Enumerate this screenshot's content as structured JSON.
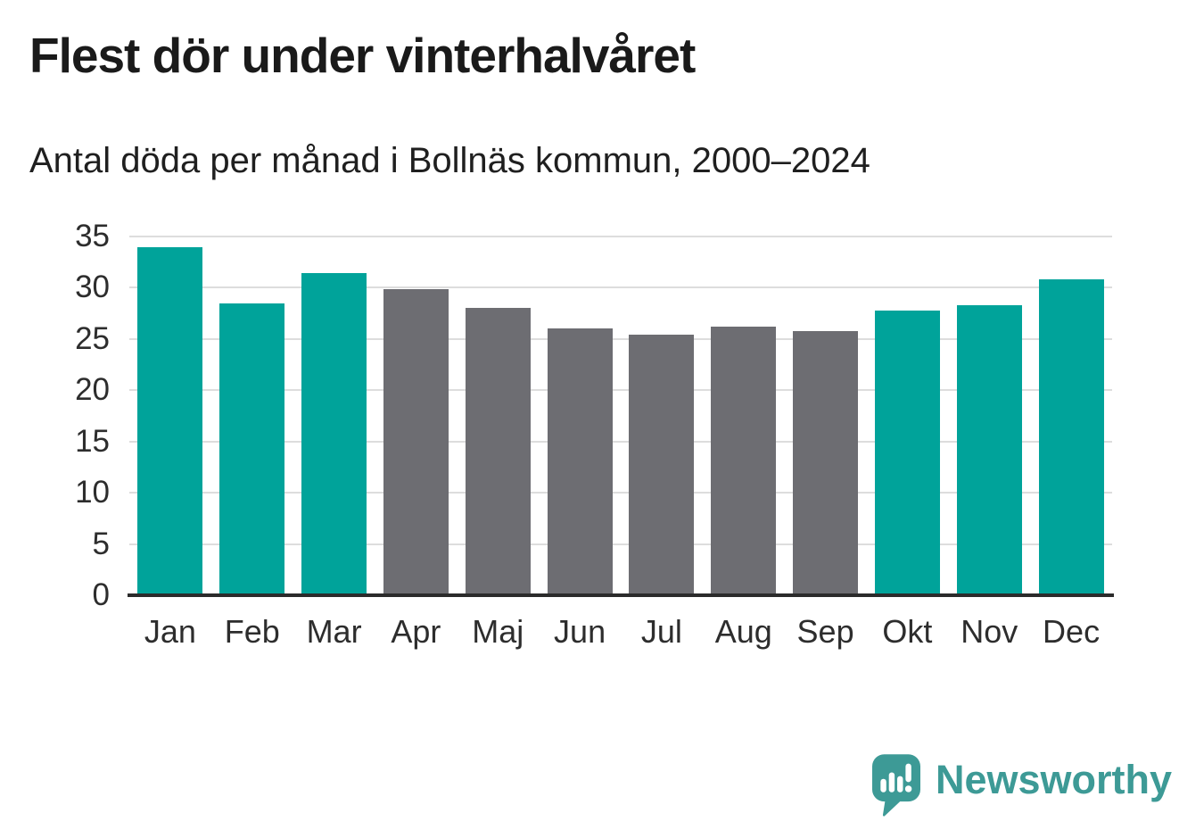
{
  "page": {
    "background": "#ffffff"
  },
  "chart_data": {
    "type": "bar",
    "title": "Flest dör under vinterhalvåret",
    "subtitle": "Antal döda per månad i Bollnäs kommun, 2000–2024",
    "categories": [
      "Jan",
      "Feb",
      "Mar",
      "Apr",
      "Maj",
      "Jun",
      "Jul",
      "Aug",
      "Sep",
      "Okt",
      "Nov",
      "Dec"
    ],
    "series": [
      {
        "name": "Antal döda per månad",
        "values": [
          34.0,
          28.5,
          31.4,
          29.9,
          28.0,
          26.0,
          25.4,
          26.2,
          25.8,
          27.8,
          28.3,
          30.8
        ]
      }
    ],
    "bar_colors": [
      "teal",
      "teal",
      "teal",
      "gray",
      "gray",
      "gray",
      "gray",
      "gray",
      "gray",
      "teal",
      "teal",
      "teal"
    ],
    "palette": {
      "teal": "#00a39a",
      "gray": "#6d6d72"
    },
    "xlabel": "",
    "ylabel": "",
    "ylim": [
      0,
      35
    ],
    "y_ticks": [
      0,
      5,
      10,
      15,
      20,
      25,
      30,
      35
    ],
    "grid": "horizontal",
    "gridline_color": "#dddddd",
    "axis_line_color": "#2b2b2b",
    "legend": "none"
  },
  "branding": {
    "logo_text": "Newsworthy",
    "brand_color": "#3d9a96",
    "logo_icon": "speech-bubble-bar-chart-icon"
  }
}
